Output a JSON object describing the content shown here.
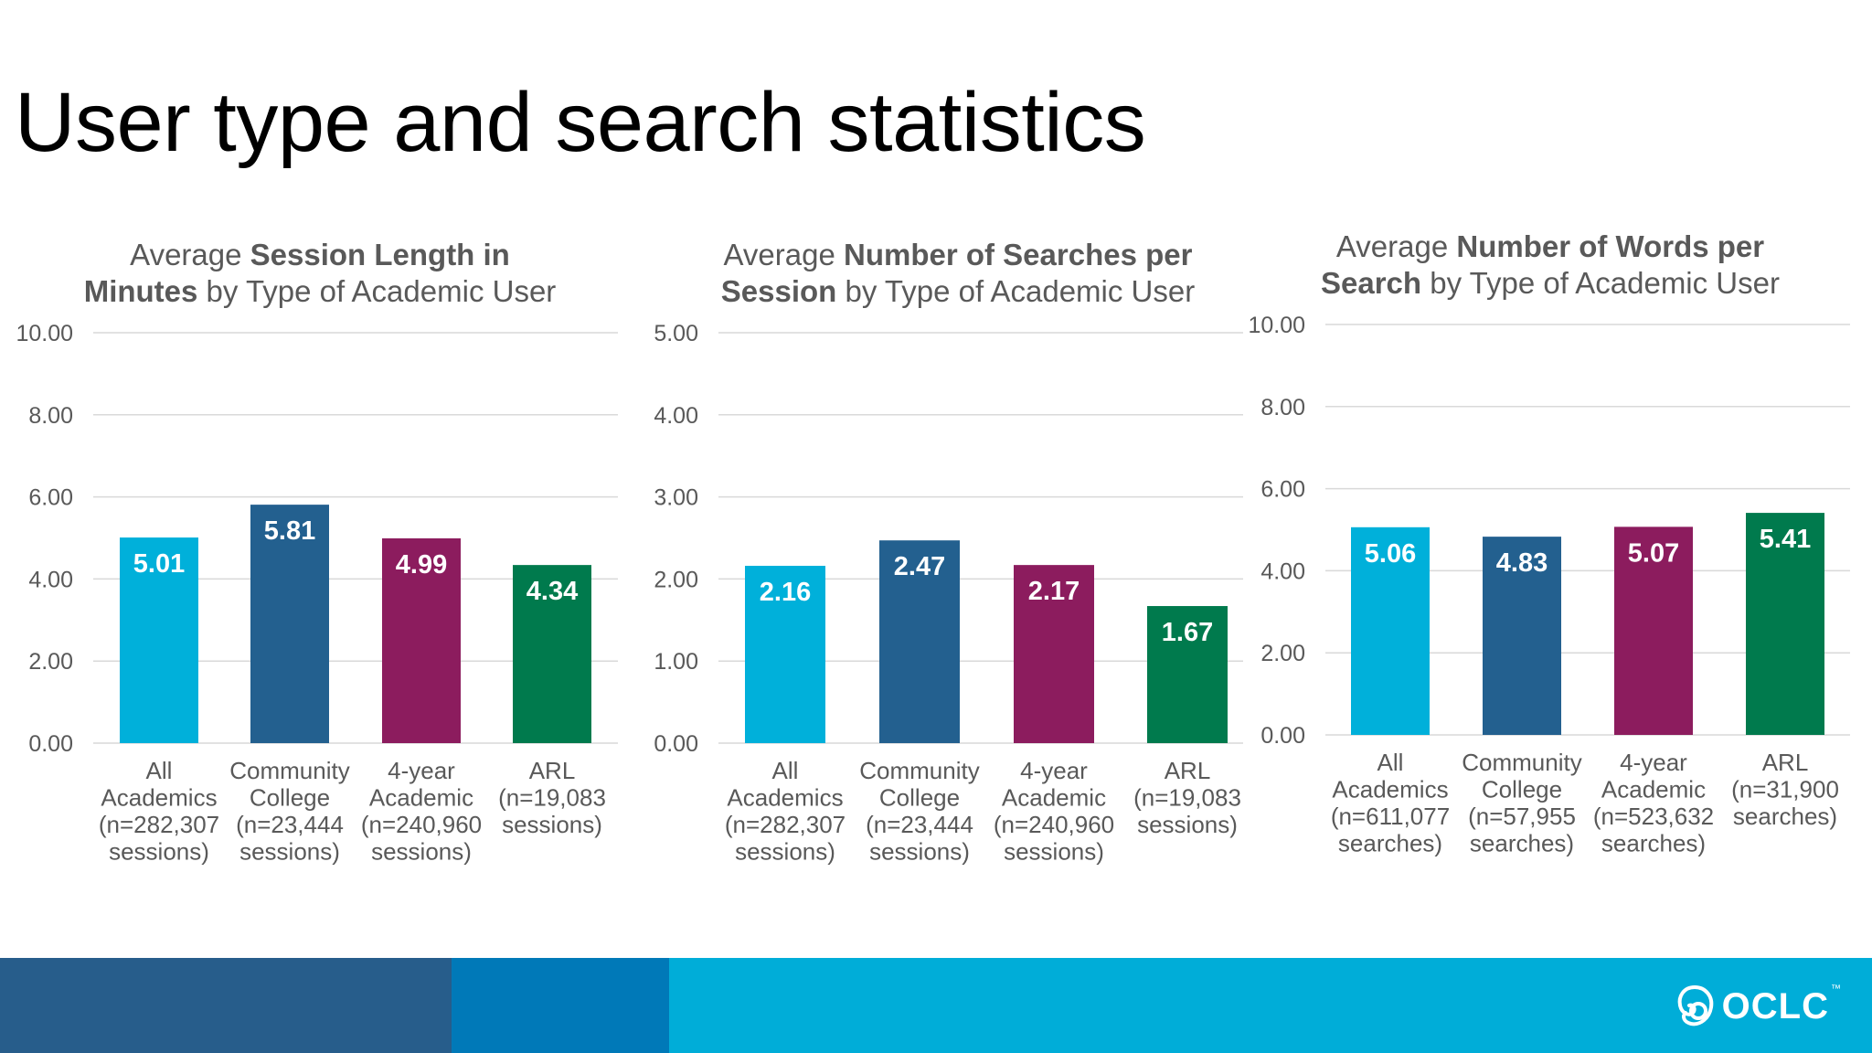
{
  "slide": {
    "title": "User type and search statistics"
  },
  "colors": {
    "all": "#00B0DA",
    "community": "#23608F",
    "four_year": "#8C1C5E",
    "arl": "#007A4D",
    "grid": "#D9D9D9",
    "footer_dark": "#275D8B",
    "footer_mid": "#0079B8",
    "footer_light": "#00ADD8"
  },
  "chart_data": [
    {
      "type": "bar",
      "title_parts": [
        [
          {
            "t": "Average ",
            "b": false
          },
          {
            "t": "Session Length in",
            "b": true
          }
        ],
        [
          {
            "t": "Minutes",
            "b": true
          },
          {
            "t": " by Type of Academic User",
            "b": false
          }
        ]
      ],
      "categories": [
        [
          "All",
          "Academics",
          "(n=282,307",
          "sessions)"
        ],
        [
          "Community",
          "College",
          "(n=23,444",
          "sessions)"
        ],
        [
          "4-year",
          "Academic",
          "(n=240,960",
          "sessions)"
        ],
        [
          "ARL",
          "(n=19,083",
          "sessions)"
        ]
      ],
      "values": [
        5.01,
        5.81,
        4.99,
        4.34
      ],
      "value_labels": [
        "5.01",
        "5.81",
        "4.99",
        "4.34"
      ],
      "yticks": [
        "0.00",
        "2.00",
        "4.00",
        "6.00",
        "8.00",
        "10.00"
      ],
      "ylim": [
        0,
        10
      ]
    },
    {
      "type": "bar",
      "title_parts": [
        [
          {
            "t": "Average ",
            "b": false
          },
          {
            "t": "Number of Searches per",
            "b": true
          }
        ],
        [
          {
            "t": "Session",
            "b": true
          },
          {
            "t": " by Type of Academic User",
            "b": false
          }
        ]
      ],
      "categories": [
        [
          "All",
          "Academics",
          "(n=282,307",
          "sessions)"
        ],
        [
          "Community",
          "College",
          "(n=23,444",
          "sessions)"
        ],
        [
          "4-year",
          "Academic",
          "(n=240,960",
          "sessions)"
        ],
        [
          "ARL",
          "(n=19,083",
          "sessions)"
        ]
      ],
      "values": [
        2.16,
        2.47,
        2.17,
        1.67
      ],
      "value_labels": [
        "2.16",
        "2.47",
        "2.17",
        "1.67"
      ],
      "yticks": [
        "0.00",
        "1.00",
        "2.00",
        "3.00",
        "4.00",
        "5.00"
      ],
      "ylim": [
        0,
        5
      ]
    },
    {
      "type": "bar",
      "title_parts": [
        [
          {
            "t": "Average ",
            "b": false
          },
          {
            "t": "Number of Words per",
            "b": true
          }
        ],
        [
          {
            "t": "Search",
            "b": true
          },
          {
            "t": " by Type of Academic User",
            "b": false
          }
        ]
      ],
      "categories": [
        [
          "All",
          "Academics",
          "(n=611,077",
          "searches)"
        ],
        [
          "Community",
          "College",
          "(n=57,955",
          "searches)"
        ],
        [
          "4-year",
          "Academic",
          "(n=523,632",
          "searches)"
        ],
        [
          "ARL",
          "(n=31,900",
          "searches)"
        ]
      ],
      "values": [
        5.06,
        4.83,
        5.07,
        5.41
      ],
      "value_labels": [
        "5.06",
        "4.83",
        "5.07",
        "5.41"
      ],
      "yticks": [
        "0.00",
        "2.00",
        "4.00",
        "6.00",
        "8.00",
        "10.00"
      ],
      "ylim": [
        0,
        10
      ]
    }
  ],
  "footer": {
    "logo_text": "OCLC",
    "logo_mark": "™"
  }
}
